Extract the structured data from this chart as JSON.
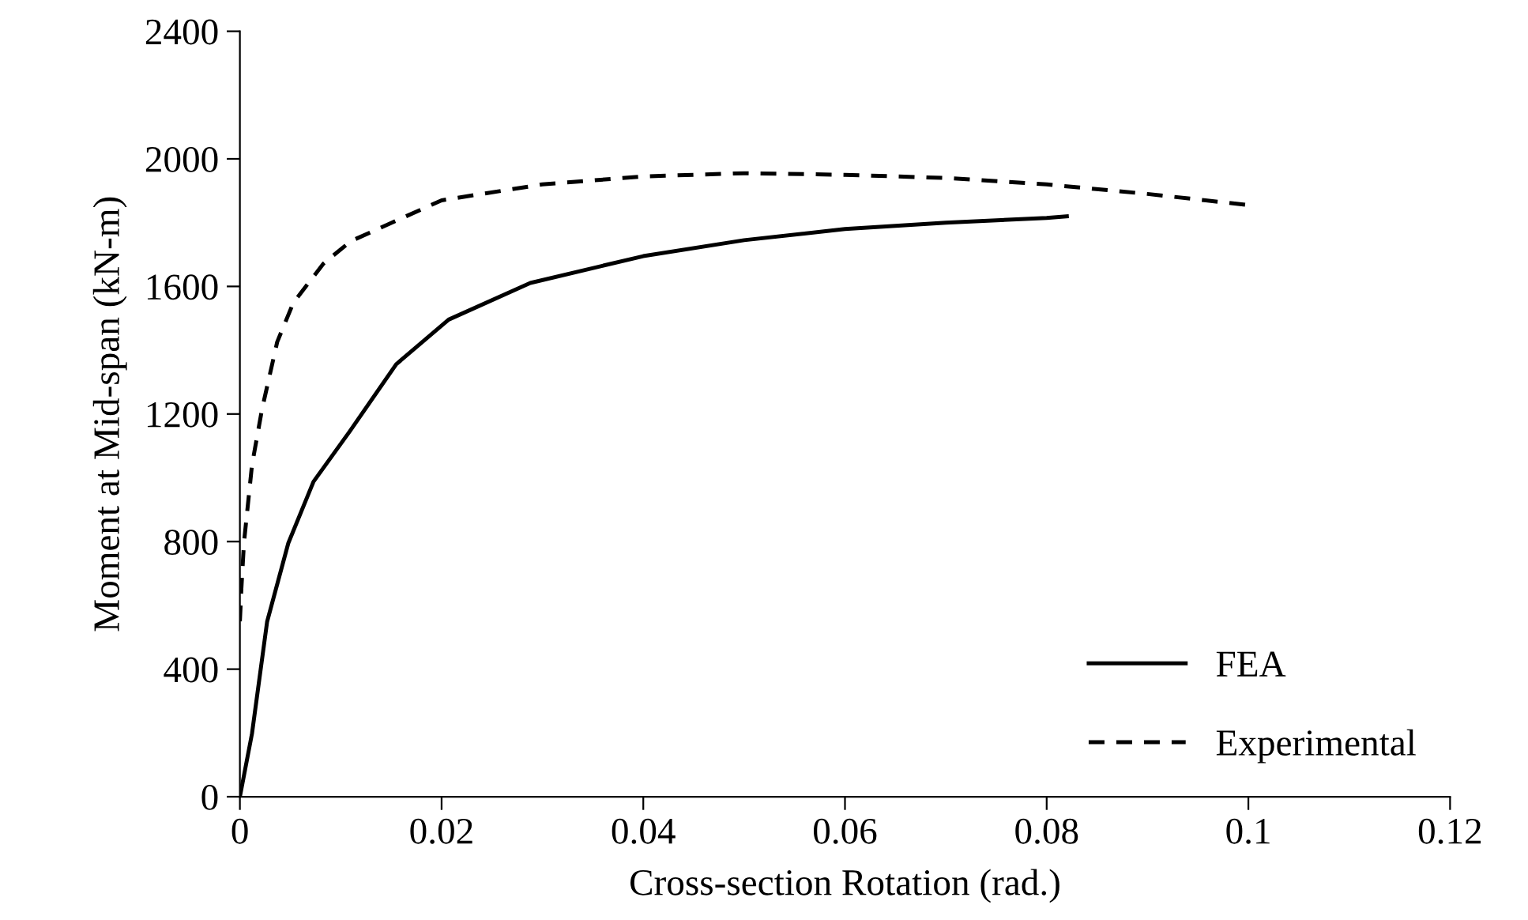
{
  "chart_data": {
    "type": "line",
    "xlabel": "Cross-section Rotation (rad.)",
    "ylabel": "Moment at Mid-span (kN-m)",
    "xlim": [
      0,
      0.12
    ],
    "xticks": [
      0,
      0.02,
      0.04,
      0.06,
      0.08,
      0.1,
      0.12
    ],
    "ylim": [
      0,
      2400
    ],
    "yticks": [
      0,
      400,
      800,
      1200,
      1600,
      2000,
      2400
    ],
    "grid": false,
    "legend": "bottom right",
    "marker": "none",
    "series": [
      {
        "name": "FEA",
        "color": "#000000",
        "line_style": "solid",
        "x": [
          0,
          0.0012,
          0.0027,
          0.0048,
          0.0073,
          0.0109,
          0.0155,
          0.0207,
          0.0288,
          0.04,
          0.05,
          0.06,
          0.07,
          0.08,
          0.082
        ],
        "values": [
          0,
          198,
          549,
          795,
          988,
          1146,
          1356,
          1496,
          1611,
          1695,
          1745,
          1780,
          1800,
          1815,
          1820
        ]
      },
      {
        "name": "Experimental",
        "color": "#000000",
        "line_style": "dashed",
        "x": [
          0,
          0.00015,
          0.0004,
          0.0012,
          0.0022,
          0.0037,
          0.0053,
          0.0083,
          0.011,
          0.02,
          0.03,
          0.04,
          0.05,
          0.06,
          0.07,
          0.08,
          0.09,
          0.1
        ],
        "values": [
          550,
          654,
          795,
          1040,
          1216,
          1426,
          1549,
          1672,
          1742,
          1870,
          1920,
          1945,
          1955,
          1950,
          1940,
          1920,
          1890,
          1855
        ]
      }
    ]
  }
}
